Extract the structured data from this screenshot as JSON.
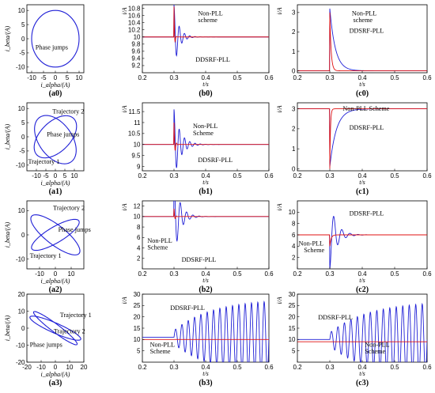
{
  "figure": {
    "colors": {
      "pll": "#1f1fd6",
      "non_pll": "#e01010",
      "axis": "#000000"
    },
    "x_axis_label": "t/s",
    "y_axis_label": "i/A",
    "lissajous_x_label": "i_alpha/(A)",
    "lissajous_y_label": "i_beta/(A)"
  },
  "chart_data": [
    {
      "id": "a0",
      "type": "scatter",
      "panel_label": "(a0)",
      "xlabel": "i_alpha/(A)",
      "ylabel": "i_beta/(A)",
      "xlim": [
        -12,
        12
      ],
      "ylim": [
        -12,
        12
      ],
      "xticks": [
        "-10",
        "-5",
        "0",
        "5",
        "10"
      ],
      "yticks": [
        "-10",
        "-5",
        "0",
        "5",
        "10"
      ],
      "series": [
        {
          "shape": "circle",
          "center": [
            0,
            0
          ],
          "radius": 10
        }
      ],
      "annotations": [
        "Phase jumps"
      ]
    },
    {
      "id": "b0",
      "type": "line",
      "panel_label": "(b0)",
      "xlabel": "t/s",
      "ylabel": "i/A",
      "xlim": [
        0.2,
        0.6
      ],
      "ylim": [
        9,
        10.9
      ],
      "xticks": [
        "0.2",
        "0.3",
        "0.4",
        "0.5",
        "0.6"
      ],
      "yticks": [
        "9.2",
        "9.4",
        "9.6",
        "9.8",
        "10",
        "10.2",
        "10.4",
        "10.6",
        "10.8"
      ],
      "series": [
        {
          "name": "DDSRF-PLL",
          "base": 10,
          "t0": 0.3,
          "amp": 0.9,
          "decay": 0.015,
          "freq": 60,
          "ramp": 0
        },
        {
          "name": "Non-PLL scheme",
          "base": 10,
          "t0": 0.3,
          "amp": 0.85,
          "decay": 0.002,
          "freq": 120,
          "ramp": 0
        }
      ],
      "annotations": [
        "Non-PLL",
        "scheme",
        "DDSRF-PLL"
      ]
    },
    {
      "id": "c0",
      "type": "line",
      "panel_label": "(c0)",
      "xlabel": "t/s",
      "ylabel": "i/A",
      "xlim": [
        0.2,
        0.6
      ],
      "ylim": [
        -0.1,
        3.4
      ],
      "xticks": [
        "0.2",
        "0.3",
        "0.4",
        "0.5",
        "0.6"
      ],
      "yticks": [
        "0",
        "1",
        "2",
        "3"
      ],
      "series": [
        {
          "name": "DDSRF-PLL",
          "base": 0,
          "t0": 0.3,
          "amp": 3.2,
          "decay": 0.017,
          "freq": 0,
          "ramp": 0
        },
        {
          "name": "Non-PLL scheme",
          "base": 0,
          "t0": 0.3,
          "amp": 3.0,
          "decay": 0.004,
          "freq": 0,
          "ramp": 0
        }
      ],
      "annotations": [
        "Non-PLL",
        "scheme",
        "DDSRF-PLL"
      ]
    },
    {
      "id": "a1",
      "type": "scatter",
      "panel_label": "(a1)",
      "xlabel": "i_alpha/(A)",
      "ylabel": "i_beta/(A)",
      "xlim": [
        -15,
        15
      ],
      "ylim": [
        -12,
        12
      ],
      "xticks": [
        "-10",
        "-5",
        "0",
        "5",
        "10"
      ],
      "yticks": [
        "-10",
        "-5",
        "0",
        "5",
        "10"
      ],
      "series": [
        {
          "shape": "ellipse",
          "center": [
            0,
            0
          ],
          "rx": 12,
          "ry": 6,
          "rotate": 25
        },
        {
          "shape": "ellipse",
          "center": [
            0,
            -1
          ],
          "rx": 12,
          "ry": 7,
          "rotate": -30
        }
      ],
      "annotations": [
        "Trajectory 2",
        "Phase jumps",
        "Trajectory 1"
      ]
    },
    {
      "id": "b1",
      "type": "line",
      "panel_label": "(b1)",
      "xlabel": "t/s",
      "ylabel": "i/A",
      "xlim": [
        0.2,
        0.6
      ],
      "ylim": [
        8.8,
        11.9
      ],
      "xticks": [
        "0.2",
        "0.3",
        "0.4",
        "0.5",
        "0.6"
      ],
      "yticks": [
        "9",
        "9.5",
        "10",
        "10.5",
        "11",
        "11.5"
      ],
      "series": [
        {
          "name": "DDSRF-PLL",
          "base": 10,
          "t0": 0.3,
          "amp": 1.6,
          "decay": 0.02,
          "freq": 60,
          "ramp": 0
        },
        {
          "name": "Non-PLL Scheme",
          "base": 10,
          "t0": 0.3,
          "amp": 1.0,
          "decay": 0.003,
          "freq": 120,
          "ramp": 0
        }
      ],
      "annotations": [
        "Non-PLL",
        "Scheme",
        "DDSRF-PLL"
      ]
    },
    {
      "id": "c1",
      "type": "line",
      "panel_label": "(c1)",
      "xlabel": "t/s",
      "ylabel": "i/A",
      "xlim": [
        0.2,
        0.6
      ],
      "ylim": [
        -0.1,
        3.3
      ],
      "xticks": [
        "0.2",
        "0.3",
        "0.4",
        "0.5",
        "0.6"
      ],
      "yticks": [
        "0",
        "1",
        "2",
        "3"
      ],
      "series": [
        {
          "name": "DDSRF-PLL",
          "base": 3,
          "t0": 0.3,
          "amp": -2.9,
          "decay": 0.02,
          "freq": 0,
          "ramp": 0
        },
        {
          "name": "Non-PLL Scheme",
          "base": 3,
          "t0": 0.3,
          "amp": -3.0,
          "decay": 0.002,
          "freq": 0,
          "ramp": 0
        }
      ],
      "annotations": [
        "Non-PLL Scheme",
        "DDSRF-PLL"
      ]
    },
    {
      "id": "a2",
      "type": "scatter",
      "panel_label": "(a2)",
      "xlabel": "i_alpha/(A)",
      "ylabel": "i_beta/(A)",
      "xlim": [
        -18,
        18
      ],
      "ylim": [
        -14,
        14
      ],
      "xticks": [
        "-10",
        "0",
        "10"
      ],
      "yticks": [
        "-10",
        "0",
        "10"
      ],
      "series": [
        {
          "shape": "ellipse",
          "center": [
            0,
            0
          ],
          "rx": 17,
          "ry": 4.5,
          "rotate": -25
        },
        {
          "shape": "ellipse",
          "center": [
            0,
            0
          ],
          "rx": 16,
          "ry": 3.5,
          "rotate": 20
        }
      ],
      "annotations": [
        "Trajectory 2",
        "Phase jumps",
        "Trajectory 1"
      ]
    },
    {
      "id": "b2",
      "type": "line",
      "panel_label": "(b2)",
      "xlabel": "t/s",
      "ylabel": "i/A",
      "xlim": [
        0.2,
        0.6
      ],
      "ylim": [
        0,
        13
      ],
      "xticks": [
        "0.2",
        "0.3",
        "0.4",
        "0.5",
        "0.6"
      ],
      "yticks": [
        "2",
        "4",
        "6",
        "8",
        "10",
        "12"
      ],
      "series": [
        {
          "name": "DDSRF-PLL",
          "base": 10,
          "t0": 0.3,
          "amp": 8,
          "decay": 0.018,
          "freq": 50,
          "ramp": 0
        },
        {
          "name": "Non-PLL Scheme",
          "base": 10,
          "t0": 0.3,
          "amp": 1.5,
          "decay": 0.003,
          "freq": 120,
          "ramp": 0
        }
      ],
      "annotations": [
        "Non-PLL",
        "Scheme",
        "DDSRF-PLL"
      ]
    },
    {
      "id": "c2",
      "type": "line",
      "panel_label": "(c2)",
      "xlabel": "t/s",
      "ylabel": "i/A",
      "xlim": [
        0.2,
        0.6
      ],
      "ylim": [
        0,
        12
      ],
      "xticks": [
        "0.2",
        "0.3",
        "0.4",
        "0.5",
        "0.6"
      ],
      "yticks": [
        "2",
        "4",
        "6",
        "8",
        "10"
      ],
      "series": [
        {
          "name": "DDSRF-PLL",
          "base": 6,
          "t0": 0.3,
          "amp": -6,
          "decay": 0.02,
          "freq": 40,
          "ramp": 0
        },
        {
          "name": "Non-PLL Scheme",
          "base": 6,
          "t0": 0.3,
          "amp": -2,
          "decay": 0.004,
          "freq": 0,
          "ramp": 0
        }
      ],
      "annotations": [
        "DDSRF-PLL",
        "Non-PLL",
        "Scheme"
      ]
    },
    {
      "id": "a3",
      "type": "scatter",
      "panel_label": "(a3)",
      "xlabel": "i_alpha/(A)",
      "ylabel": "i_beta/(A)",
      "xlim": [
        -20,
        20
      ],
      "ylim": [
        -20,
        20
      ],
      "xticks": [
        "-20",
        "-10",
        "0",
        "10",
        "20"
      ],
      "yticks": [
        "-20",
        "-10",
        "0",
        "10",
        "20"
      ],
      "series": [
        {
          "shape": "ellipse",
          "center": [
            0,
            0
          ],
          "rx": 19,
          "ry": 3,
          "rotate": -20
        },
        {
          "shape": "ellipse",
          "center": [
            0,
            0
          ],
          "rx": 18,
          "ry": 2.5,
          "rotate": -32
        }
      ],
      "annotations": [
        "Trajectory 1",
        "Trajectory 2",
        "Phase jumps"
      ]
    },
    {
      "id": "b3",
      "type": "line",
      "panel_label": "(b3)",
      "xlabel": "t/s",
      "ylabel": "i/A",
      "xlim": [
        0.2,
        0.6
      ],
      "ylim": [
        0,
        30
      ],
      "xticks": [
        "0.2",
        "0.3",
        "0.4",
        "0.5",
        "0.6"
      ],
      "yticks": [
        "5",
        "10",
        "15",
        "20",
        "25",
        "30"
      ],
      "series": [
        {
          "name": "DDSRF-PLL",
          "base": 11,
          "t0": 0.3,
          "amp": 3,
          "decay": 0,
          "freq": 50,
          "ramp": 14
        },
        {
          "name": "Non-PLL Scheme",
          "base": 10,
          "t0": 0.3,
          "amp": 0,
          "decay": 0,
          "freq": 0,
          "ramp": 0
        }
      ],
      "annotations": [
        "DDSRF-PLL",
        "Non-PLL",
        "Scheme"
      ]
    },
    {
      "id": "c3",
      "type": "line",
      "panel_label": "(c3)",
      "xlabel": "t/s",
      "ylabel": "i/A",
      "xlim": [
        0.2,
        0.6
      ],
      "ylim": [
        0,
        30
      ],
      "xticks": [
        "0.2",
        "0.3",
        "0.4",
        "0.5",
        "0.6"
      ],
      "yticks": [
        "5",
        "10",
        "15",
        "20",
        "25",
        "30"
      ],
      "series": [
        {
          "name": "DDSRF-PLL",
          "base": 10,
          "t0": 0.3,
          "amp": 3,
          "decay": 0,
          "freq": 50,
          "ramp": 14
        },
        {
          "name": "Non-PLL Scheme",
          "base": 9,
          "t0": 0.3,
          "amp": 0,
          "decay": 0,
          "freq": 0,
          "ramp": 0
        }
      ],
      "annotations": [
        "DDSRF-PLL",
        "Non-PLL",
        "Scheme"
      ]
    }
  ]
}
